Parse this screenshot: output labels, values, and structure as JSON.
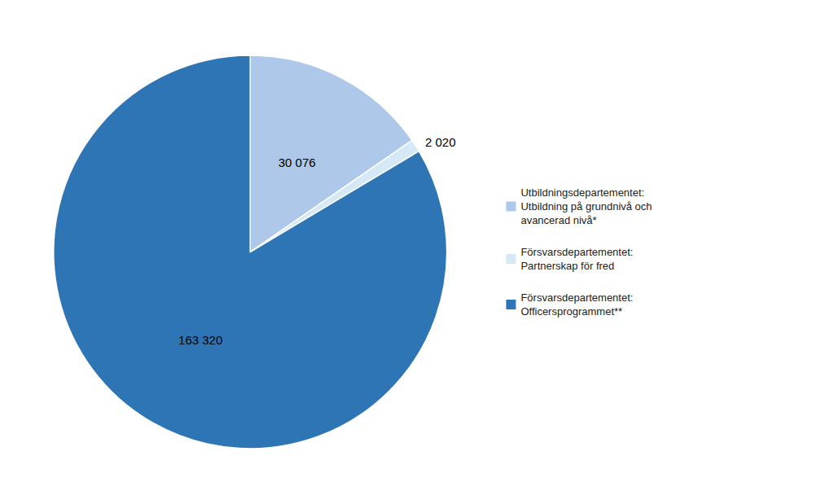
{
  "chart_data": {
    "type": "pie",
    "categories": [
      "Utbildningsdepartementet:\nUtbildning på grundnivå och\navancerad nivå*",
      "Försvarsdepartementet:\nPartnerskap för fred",
      "Försvarsdepartementet:\nOfficersprogrammet**"
    ],
    "values": [
      30076,
      2020,
      163320
    ],
    "value_labels": [
      "30 076",
      "2 020",
      "163 320"
    ],
    "colors": [
      "#adc8e8",
      "#d4e8f5",
      "#2e75b6"
    ],
    "data_labels": true,
    "legend": "right"
  }
}
